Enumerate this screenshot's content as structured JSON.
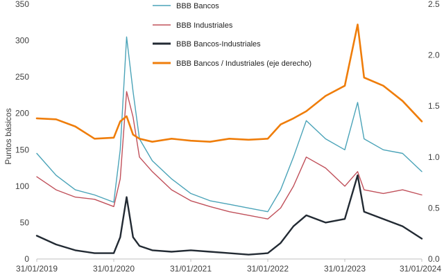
{
  "chart_data": {
    "type": "line",
    "title": "",
    "xlabel": "",
    "ylabel": "Puntos básicos",
    "y2label": "",
    "ylim": [
      0,
      350
    ],
    "y2lim": [
      0.0,
      2.5
    ],
    "yticks": [
      "0",
      "50",
      "100",
      "150",
      "200",
      "250",
      "300",
      "350"
    ],
    "y2ticks": [
      "0.0",
      "0.5",
      "1.0",
      "1.5",
      "2.0",
      "2.5"
    ],
    "x_ticks": [
      "31/01/2019",
      "31/01/2020",
      "31/01/2021",
      "31/01/2022",
      "31/01/2023",
      "31/01/2024"
    ],
    "grid": false,
    "legend_position": "top-center",
    "x": [
      "2019-01",
      "2019-04",
      "2019-07",
      "2019-10",
      "2020-01",
      "2020-02",
      "2020-03",
      "2020-04",
      "2020-05",
      "2020-07",
      "2020-10",
      "2021-01",
      "2021-04",
      "2021-07",
      "2021-10",
      "2022-01",
      "2022-03",
      "2022-05",
      "2022-07",
      "2022-10",
      "2023-01",
      "2023-03",
      "2023-04",
      "2023-07",
      "2023-10",
      "2024-01"
    ],
    "series": [
      {
        "name": "BBB Bancos",
        "axis": "left",
        "color": "#4aa3b8",
        "values": [
          145,
          115,
          95,
          88,
          78,
          150,
          305,
          230,
          165,
          135,
          110,
          90,
          80,
          75,
          70,
          65,
          95,
          140,
          190,
          165,
          150,
          215,
          165,
          150,
          145,
          120
        ]
      },
      {
        "name": "BBB Industriales",
        "axis": "left",
        "color": "#c0505a",
        "values": [
          113,
          95,
          85,
          82,
          72,
          110,
          230,
          195,
          140,
          120,
          95,
          80,
          72,
          65,
          60,
          55,
          70,
          100,
          140,
          125,
          100,
          120,
          95,
          90,
          95,
          88
        ]
      },
      {
        "name": "BBB Bancos-Industriales",
        "axis": "left",
        "color": "#222a33",
        "values": [
          32,
          20,
          12,
          8,
          8,
          30,
          85,
          30,
          18,
          12,
          10,
          12,
          10,
          8,
          6,
          8,
          22,
          45,
          60,
          50,
          55,
          115,
          65,
          55,
          45,
          28
        ]
      },
      {
        "name": "BBB Bancos / Industriales (eje derecho)",
        "axis": "right",
        "color": "#ef7d0a",
        "values": [
          1.38,
          1.37,
          1.3,
          1.18,
          1.19,
          1.35,
          1.4,
          1.22,
          1.18,
          1.15,
          1.18,
          1.16,
          1.15,
          1.18,
          1.17,
          1.18,
          1.32,
          1.38,
          1.45,
          1.6,
          1.7,
          2.3,
          1.78,
          1.7,
          1.55,
          1.35
        ]
      }
    ]
  }
}
